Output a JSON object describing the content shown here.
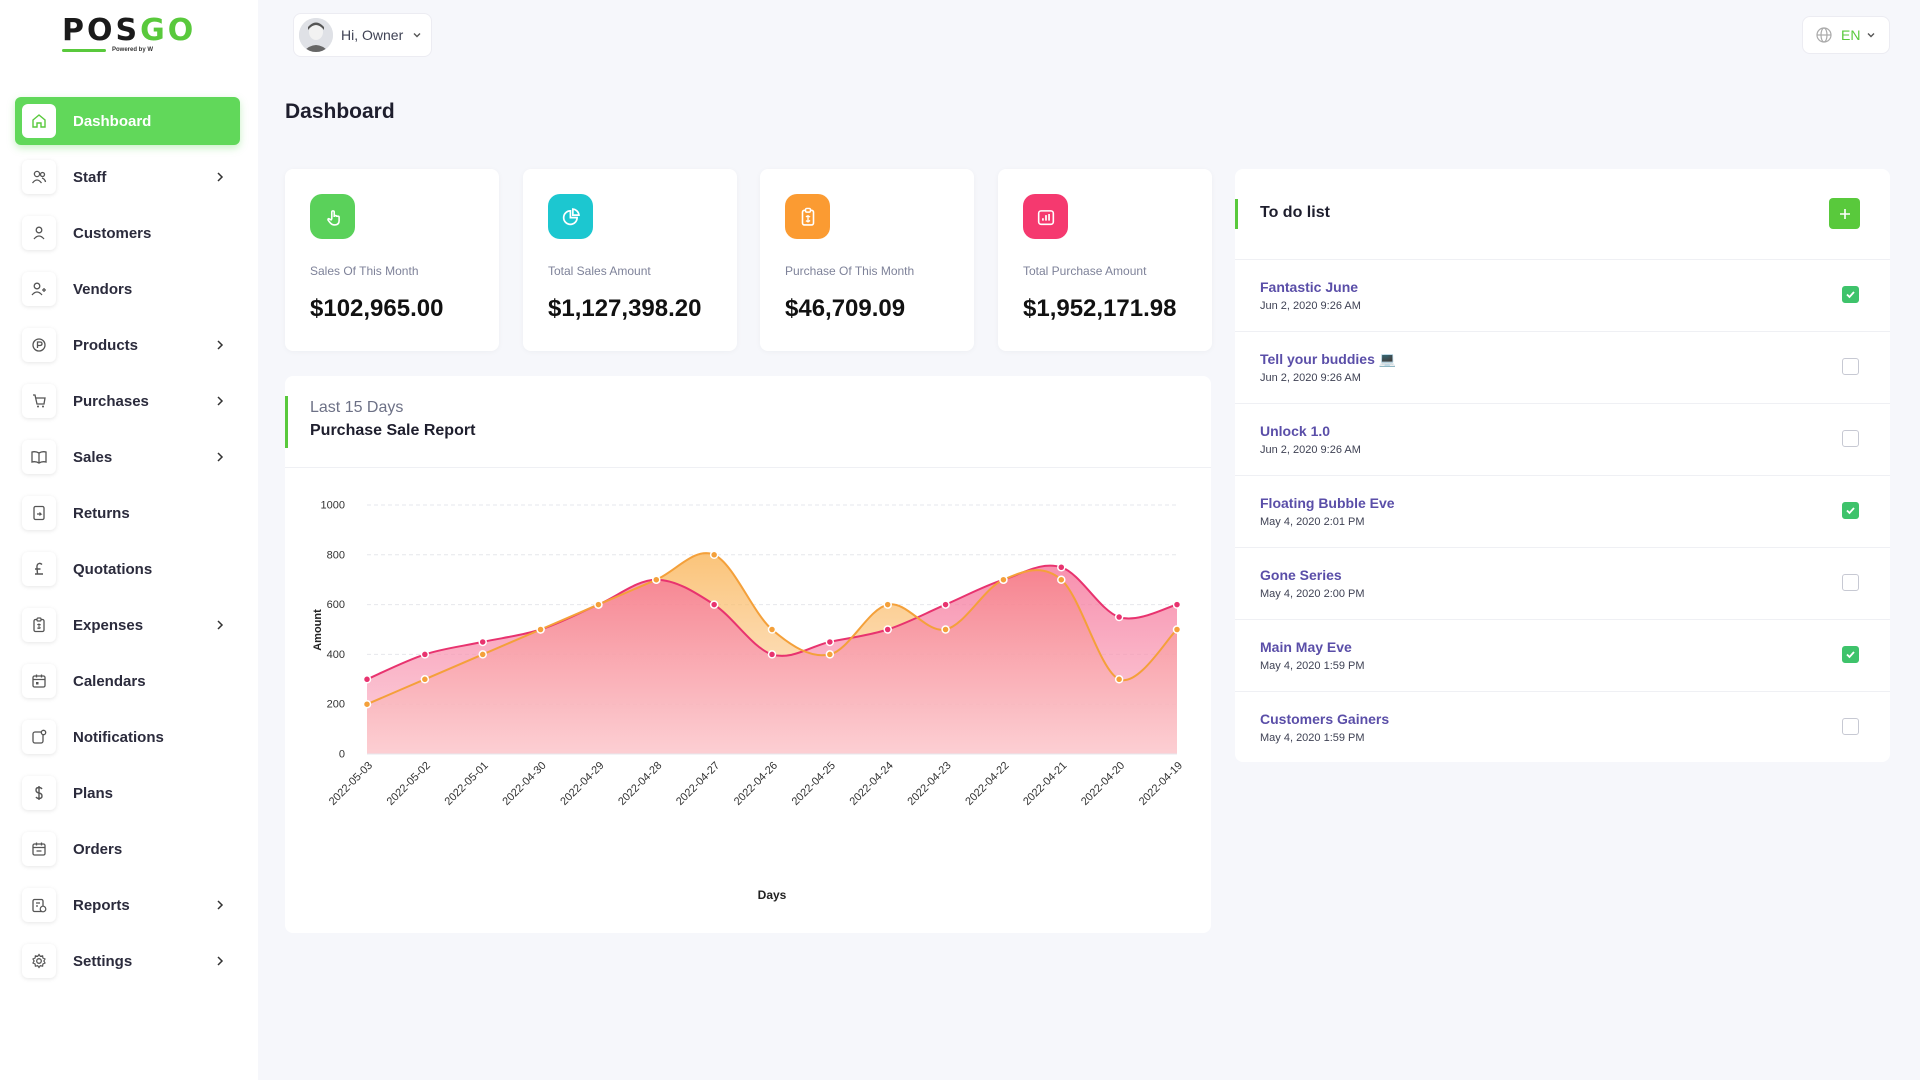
{
  "brand": {
    "logo_text_a": "POS",
    "logo_text_b": "GO",
    "logo_sub": "Powered by W"
  },
  "header": {
    "greeting": "Hi, Owner",
    "language": "EN"
  },
  "page": {
    "title": "Dashboard"
  },
  "sidebar": {
    "items": [
      {
        "label": "Dashboard",
        "icon": "home-icon",
        "chevron": false
      },
      {
        "label": "Staff",
        "icon": "users-icon",
        "chevron": true
      },
      {
        "label": "Customers",
        "icon": "user-icon",
        "chevron": false
      },
      {
        "label": "Vendors",
        "icon": "user-plus-icon",
        "chevron": false
      },
      {
        "label": "Products",
        "icon": "product-icon",
        "chevron": true
      },
      {
        "label": "Purchases",
        "icon": "cart-icon",
        "chevron": true
      },
      {
        "label": "Sales",
        "icon": "book-icon",
        "chevron": true
      },
      {
        "label": "Returns",
        "icon": "return-icon",
        "chevron": false
      },
      {
        "label": "Quotations",
        "icon": "pound-icon",
        "chevron": false
      },
      {
        "label": "Expenses",
        "icon": "clipboard-icon",
        "chevron": true
      },
      {
        "label": "Calendars",
        "icon": "calendar-icon",
        "chevron": false
      },
      {
        "label": "Notifications",
        "icon": "notification-icon",
        "chevron": false
      },
      {
        "label": "Plans",
        "icon": "dollar-icon",
        "chevron": false
      },
      {
        "label": "Orders",
        "icon": "orders-calendar-icon",
        "chevron": false
      },
      {
        "label": "Reports",
        "icon": "report-icon",
        "chevron": true
      },
      {
        "label": "Settings",
        "icon": "gear-icon",
        "chevron": true
      }
    ]
  },
  "stats": [
    {
      "label": "Sales Of This Month",
      "value": "$102,965.00",
      "color": "#5ad15a",
      "icon": "hand-pointer-icon"
    },
    {
      "label": "Total Sales Amount",
      "value": "$1,127,398.20",
      "color": "#1cc7d0",
      "icon": "pie-chart-icon"
    },
    {
      "label": "Purchase Of This Month",
      "value": "$46,709.09",
      "color": "#fb9b32",
      "icon": "clipboard-dollar-icon"
    },
    {
      "label": "Total Purchase Amount",
      "value": "$1,952,171.98",
      "color": "#f5396f",
      "icon": "bar-chart-icon"
    }
  ],
  "chart_card": {
    "subtitle": "Last 15 Days",
    "title": "Purchase Sale Report"
  },
  "chart_data": {
    "type": "area",
    "x": [
      "2022-05-03",
      "2022-05-02",
      "2022-05-01",
      "2022-04-30",
      "2022-04-29",
      "2022-04-28",
      "2022-04-27",
      "2022-04-26",
      "2022-04-25",
      "2022-04-24",
      "2022-04-23",
      "2022-04-22",
      "2022-04-21",
      "2022-04-20",
      "2022-04-19"
    ],
    "series": [
      {
        "values": [
          300,
          400,
          450,
          500,
          600,
          700,
          600,
          400,
          450,
          500,
          600,
          700,
          750,
          550,
          600
        ],
        "color": "#e8336f"
      },
      {
        "values": [
          200,
          300,
          400,
          500,
          600,
          700,
          800,
          500,
          400,
          600,
          500,
          700,
          700,
          300,
          500
        ],
        "color": "#f4a03a"
      }
    ],
    "xlabel": "Days",
    "ylabel": "Amount",
    "ylim": [
      0,
      1000
    ],
    "yticks": [
      0,
      200,
      400,
      600,
      800,
      1000
    ],
    "grid": true,
    "legend": "none"
  },
  "todo": {
    "title": "To do list",
    "items": [
      {
        "name": "Fantastic June",
        "date": "Jun 2, 2020 9:26 AM",
        "done": true
      },
      {
        "name": "Tell your buddies 💻",
        "date": "Jun 2, 2020 9:26 AM",
        "done": false
      },
      {
        "name": "Unlock 1.0",
        "date": "Jun 2, 2020 9:26 AM",
        "done": false
      },
      {
        "name": "Floating Bubble Eve",
        "date": "May 4, 2020 2:01 PM",
        "done": true
      },
      {
        "name": "Gone Series",
        "date": "May 4, 2020 2:00 PM",
        "done": false
      },
      {
        "name": "Main May Eve",
        "date": "May 4, 2020 1:59 PM",
        "done": true
      },
      {
        "name": "Customers Gainers",
        "date": "May 4, 2020 1:59 PM",
        "done": false
      }
    ]
  }
}
